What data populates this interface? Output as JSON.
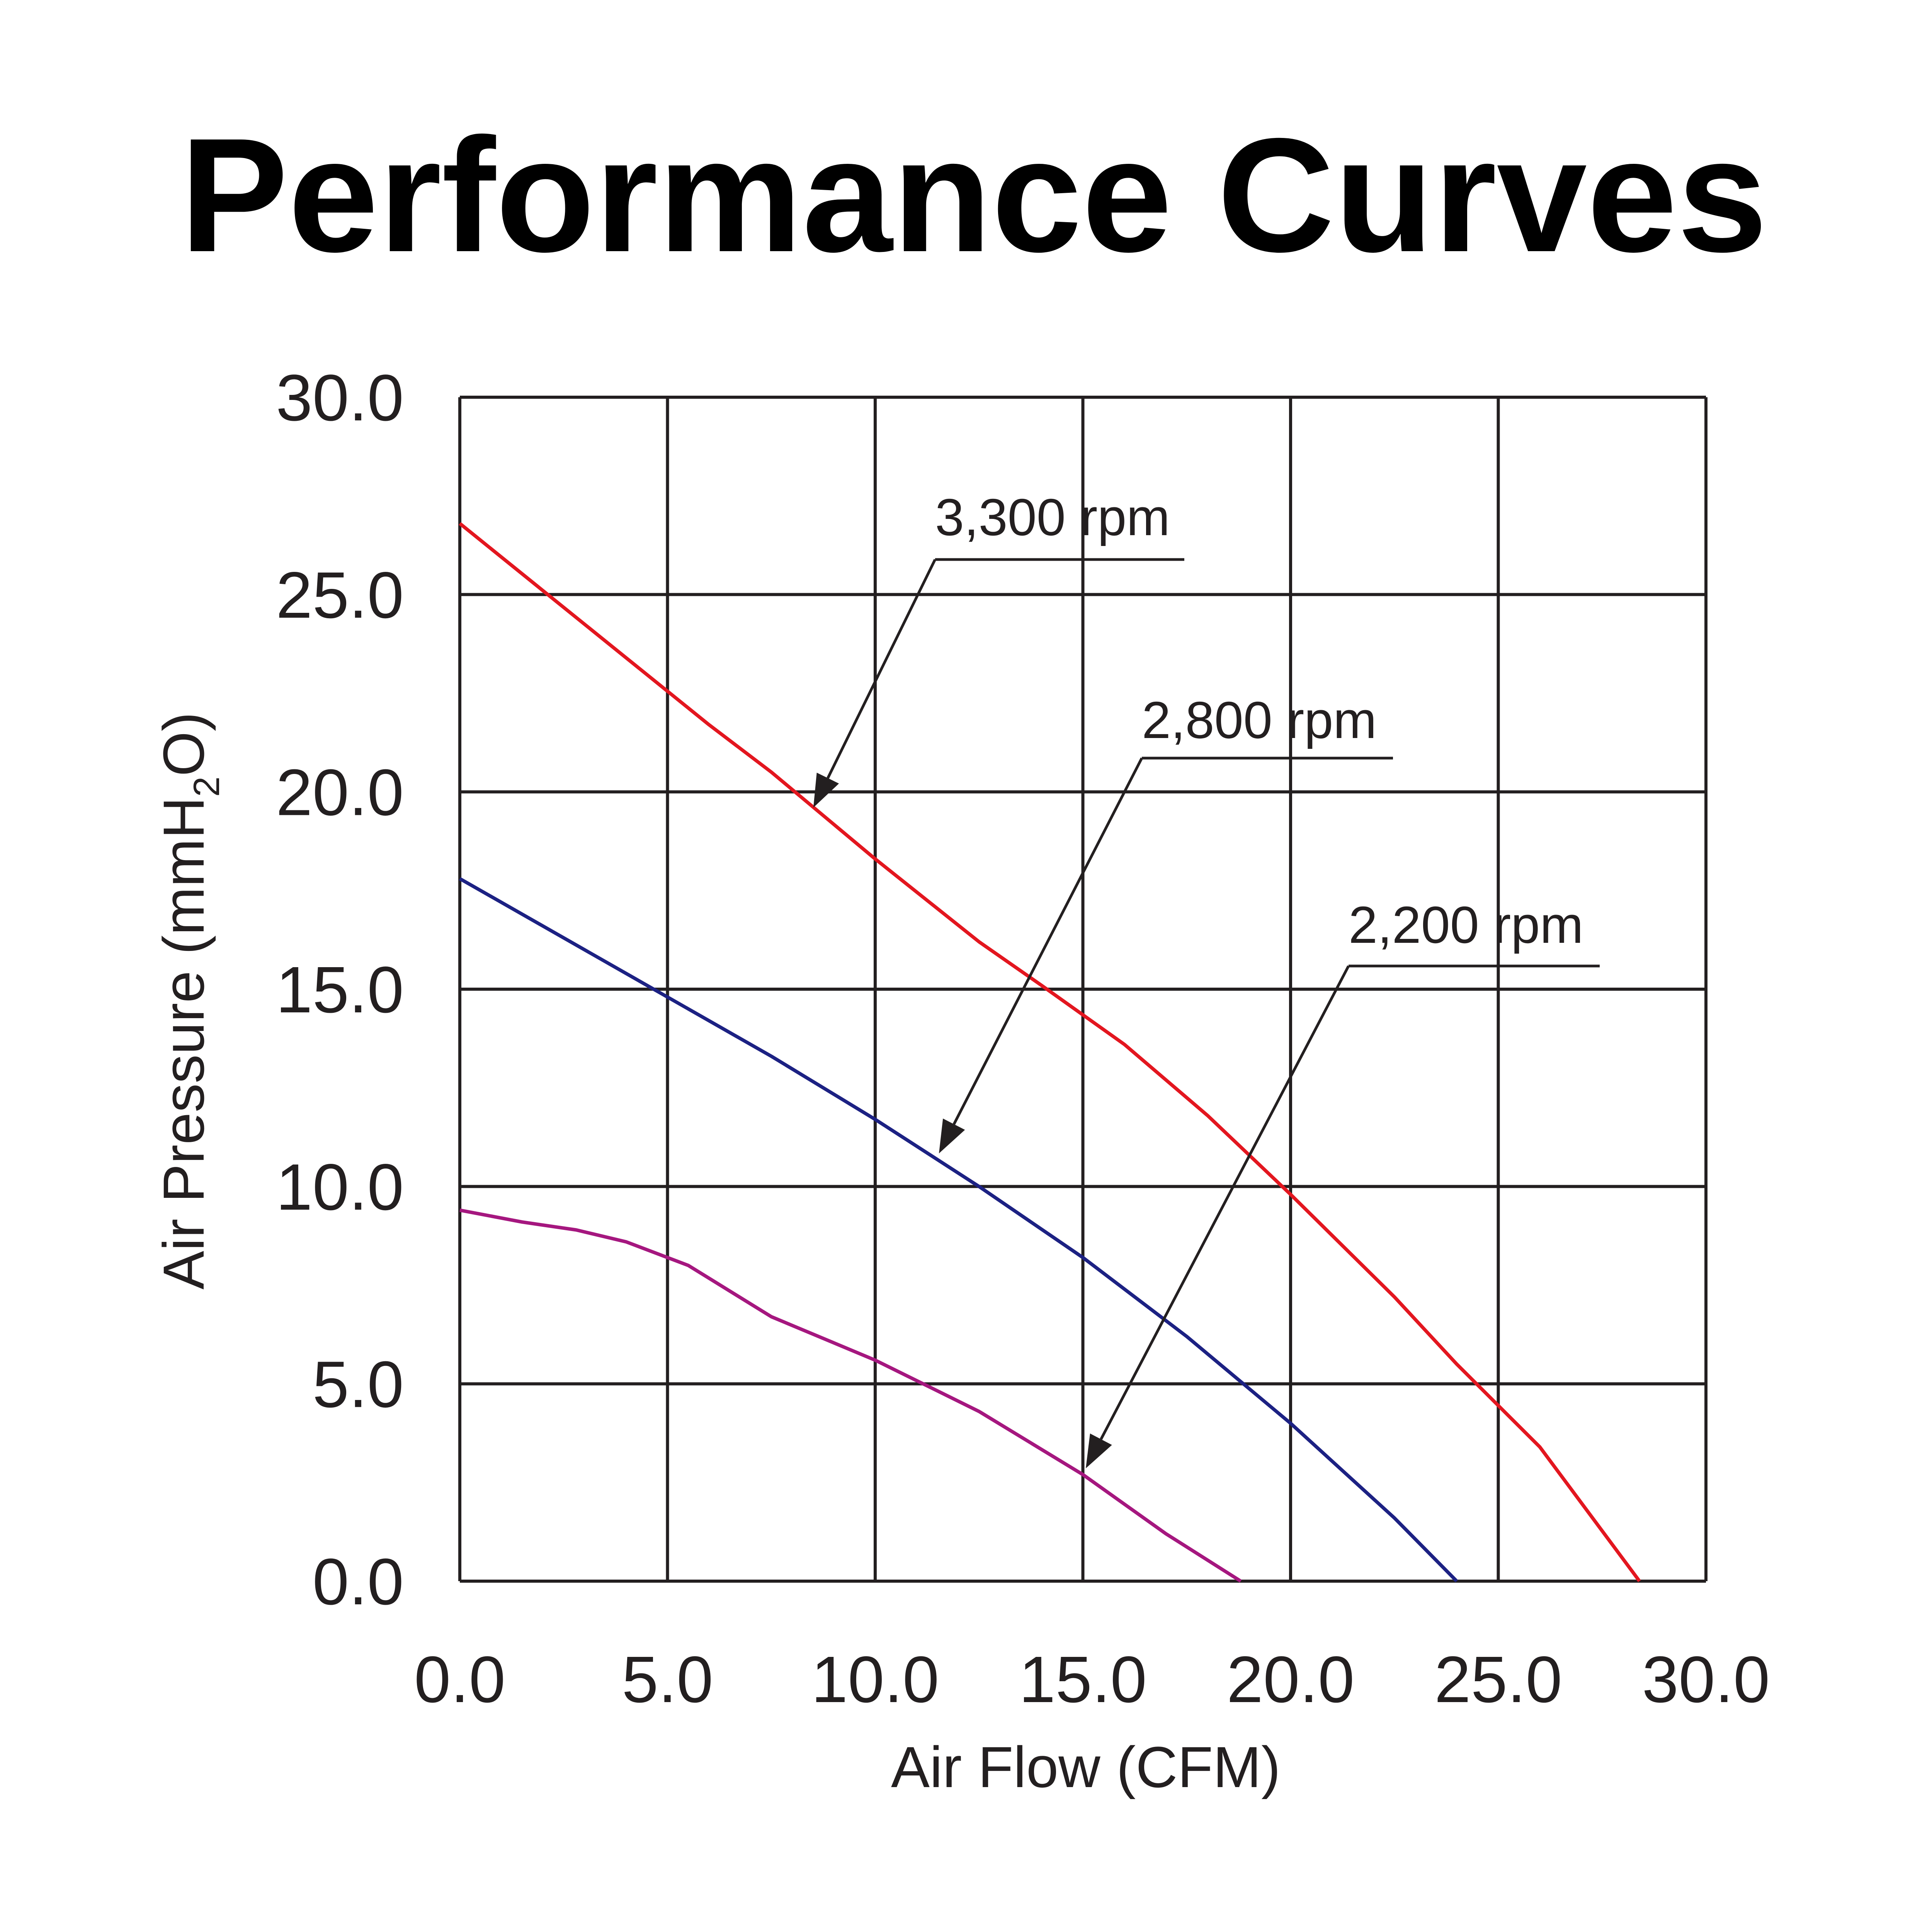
{
  "chart_data": {
    "type": "line",
    "title": "Performance Curves",
    "xlabel": "Air Flow (CFM)",
    "ylabel": {
      "main": "Air Pressure (mmH",
      "sub": "2",
      "tail": "O)"
    },
    "xlim": [
      0,
      30
    ],
    "ylim": [
      0,
      30
    ],
    "xticks": [
      "0.0",
      "5.0",
      "10.0",
      "15.0",
      "20.0",
      "25.0",
      "30.0"
    ],
    "yticks": [
      "0.0",
      "5.0",
      "10.0",
      "15.0",
      "20.0",
      "25.0",
      "30.0"
    ],
    "grid": true,
    "series": [
      {
        "name": "3,300 rpm",
        "color": "#e3161f",
        "points": [
          [
            0,
            26.8
          ],
          [
            2,
            25.1
          ],
          [
            4,
            23.4
          ],
          [
            6,
            21.7
          ],
          [
            7.5,
            20.5
          ],
          [
            10,
            18.3
          ],
          [
            12.5,
            16.2
          ],
          [
            14,
            15.1
          ],
          [
            16,
            13.6
          ],
          [
            18,
            11.8
          ],
          [
            20,
            9.8
          ],
          [
            22.5,
            7.2
          ],
          [
            24,
            5.5
          ],
          [
            26,
            3.4
          ],
          [
            28.4,
            0
          ]
        ]
      },
      {
        "name": "2,800 rpm",
        "color": "#1c2183",
        "points": [
          [
            0,
            17.8
          ],
          [
            2.5,
            16.3
          ],
          [
            5,
            14.8
          ],
          [
            7.5,
            13.3
          ],
          [
            10,
            11.7
          ],
          [
            12.5,
            10.0
          ],
          [
            15,
            8.2
          ],
          [
            17.5,
            6.2
          ],
          [
            20,
            4.0
          ],
          [
            22.5,
            1.6
          ],
          [
            24,
            0
          ]
        ]
      },
      {
        "name": "2,200 rpm",
        "color": "#a5177f",
        "points": [
          [
            0,
            9.4
          ],
          [
            1.5,
            9.1
          ],
          [
            2.8,
            8.9
          ],
          [
            4,
            8.6
          ],
          [
            5.5,
            8.0
          ],
          [
            7.5,
            6.7
          ],
          [
            10,
            5.6
          ],
          [
            12.5,
            4.3
          ],
          [
            15,
            2.7
          ],
          [
            17,
            1.2
          ],
          [
            18.8,
            0
          ]
        ]
      }
    ]
  }
}
